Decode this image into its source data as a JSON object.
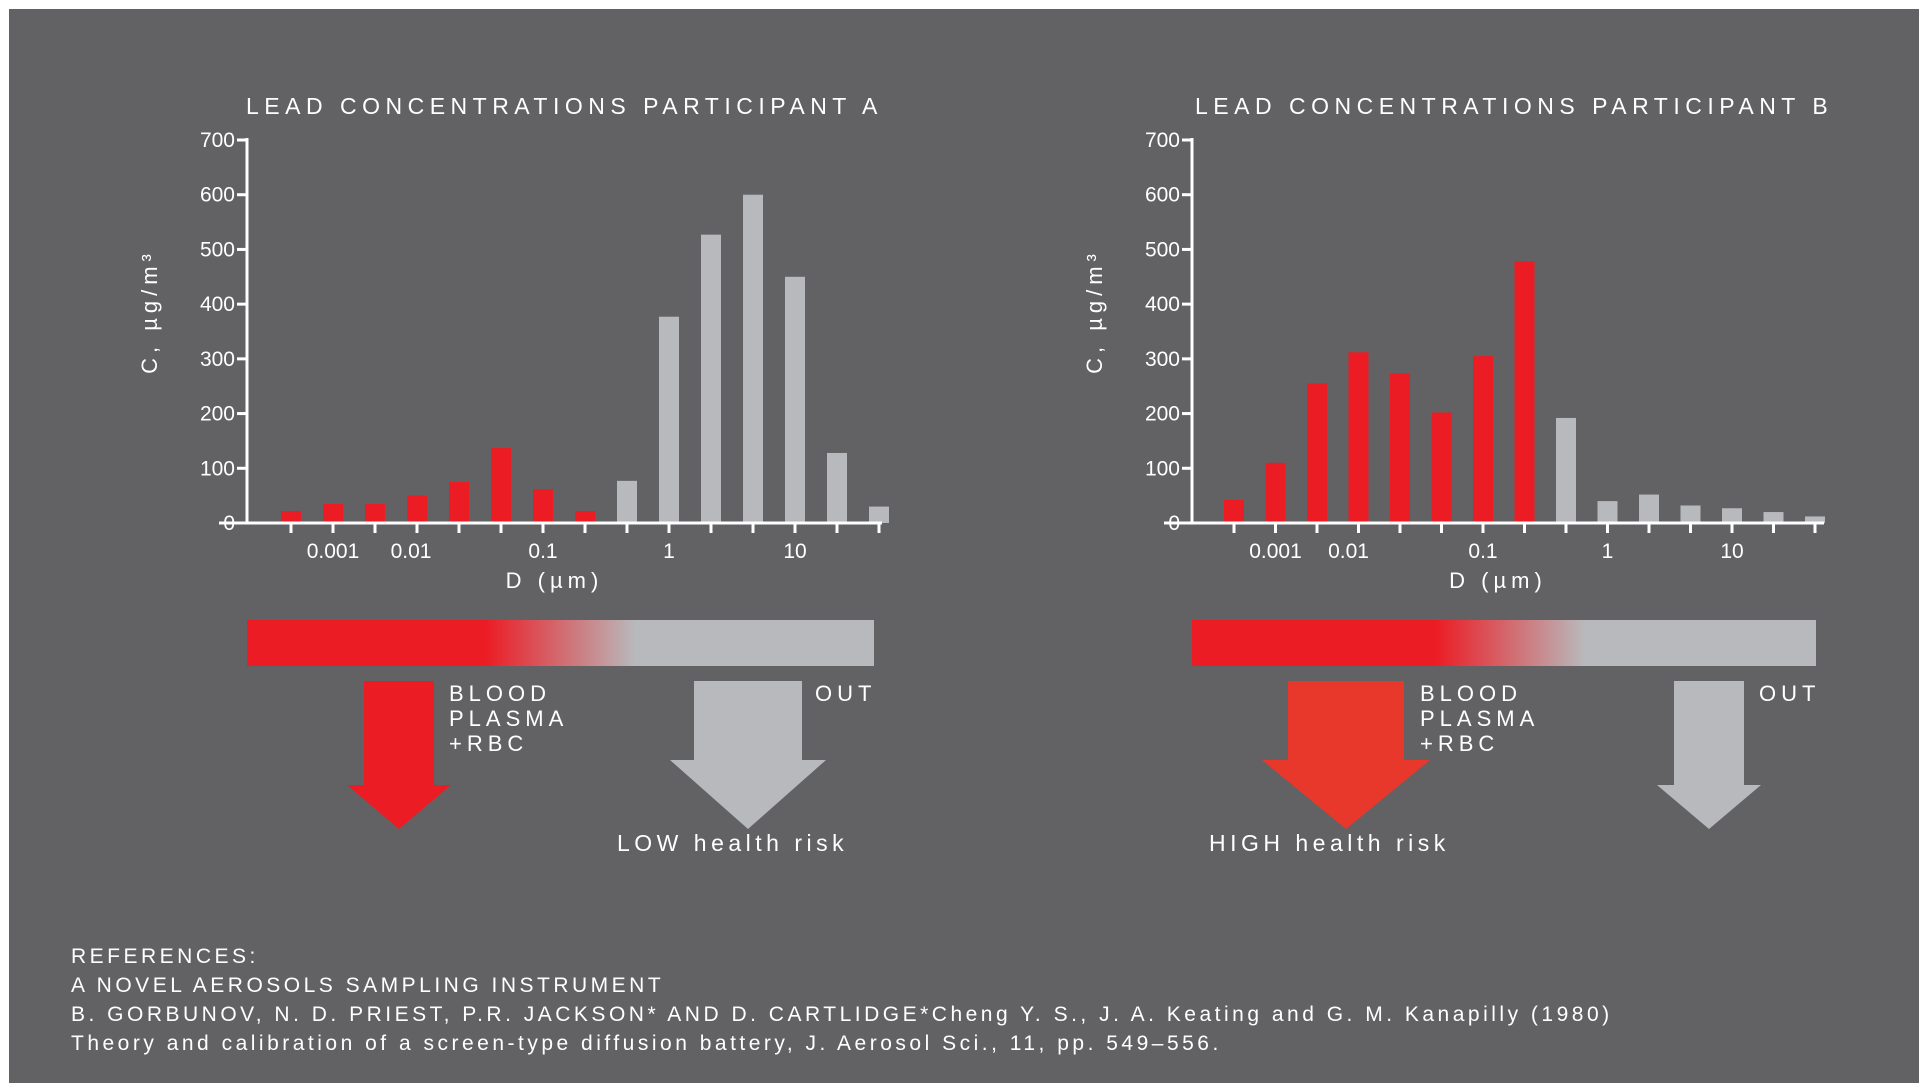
{
  "charts": [
    {
      "id": "a",
      "title": "LEAD CONCENTRATIONS PARTICIPANT A",
      "ylabel": "C, µg/m³",
      "xlabel": "D (µm)",
      "yticks": [
        "0",
        "100",
        "200",
        "300",
        "400",
        "500",
        "600",
        "700"
      ],
      "xticks": [
        "0.001",
        "0.01",
        "0.1",
        "1",
        "10"
      ],
      "deposition_labels": {
        "left": "BLOOD\nPLASMA\n+RBC",
        "right": "OUT"
      },
      "risk_label": "LOW health risk"
    },
    {
      "id": "b",
      "title": "LEAD CONCENTRATIONS PARTICIPANT B",
      "ylabel": "C, µg/m³",
      "xlabel": "D (µm)",
      "yticks": [
        "0",
        "100",
        "200",
        "300",
        "400",
        "500",
        "600",
        "700"
      ],
      "xticks": [
        "0.001",
        "0.01",
        "0.1",
        "1",
        "10"
      ],
      "deposition_labels": {
        "left": "BLOOD\nPLASMA\n+RBC",
        "right": "OUT"
      },
      "risk_label": "HIGH health risk"
    }
  ],
  "chart_data": [
    {
      "type": "bar",
      "title": "LEAD CONCENTRATIONS PARTICIPANT A",
      "xlabel": "D (µm)",
      "ylabel": "C, µg/m³",
      "ylim": [
        0,
        700
      ],
      "x_scale": "log",
      "x_ticks": [
        0.001,
        0.01,
        0.1,
        1,
        10
      ],
      "series": [
        {
          "color": "#ec1c24",
          "x": [
            0.0005,
            0.001,
            0.002,
            0.005,
            0.01,
            0.02,
            0.05,
            0.1,
            0.2,
            0.5
          ],
          "values": [
            22,
            35,
            35,
            50,
            75,
            137,
            62,
            22,
            0,
            0
          ]
        }
      ],
      "bars": [
        {
          "x": 0.0005,
          "value": 22,
          "color": "#ec1c24"
        },
        {
          "x": 0.001,
          "value": 35,
          "color": "#ec1c24"
        },
        {
          "x": 0.002,
          "value": 35,
          "color": "#ec1c24"
        },
        {
          "x": 0.005,
          "value": 50,
          "color": "#ec1c24"
        },
        {
          "x": 0.01,
          "value": 75,
          "color": "#ec1c24"
        },
        {
          "x": 0.02,
          "value": 137,
          "color": "#ec1c24"
        },
        {
          "x": 0.05,
          "value": 62,
          "color": "#ec1c24"
        },
        {
          "x": 0.1,
          "value": 22,
          "color": "#ec1c24"
        },
        {
          "x": 0.2,
          "value": 77,
          "color": "#b8b9bc"
        },
        {
          "x": 0.5,
          "value": 377,
          "color": "#b8b9bc"
        },
        {
          "x": 1,
          "value": 527,
          "color": "#b8b9bc"
        },
        {
          "x": 2,
          "value": 600,
          "color": "#b8b9bc"
        },
        {
          "x": 5,
          "value": 450,
          "color": "#b8b9bc"
        },
        {
          "x": 10,
          "value": 128,
          "color": "#b8b9bc"
        },
        {
          "x": 20,
          "value": 30,
          "color": "#b8b9bc"
        }
      ]
    },
    {
      "type": "bar",
      "title": "LEAD CONCENTRATIONS PARTICIPANT B",
      "xlabel": "D (µm)",
      "ylabel": "C, µg/m³",
      "ylim": [
        0,
        700
      ],
      "x_scale": "log",
      "x_ticks": [
        0.001,
        0.01,
        0.1,
        1,
        10
      ],
      "bars": [
        {
          "x": 0.0005,
          "value": 42,
          "color": "#ec1c24"
        },
        {
          "x": 0.001,
          "value": 110,
          "color": "#ec1c24"
        },
        {
          "x": 0.002,
          "value": 255,
          "color": "#ec1c24"
        },
        {
          "x": 0.005,
          "value": 312,
          "color": "#ec1c24"
        },
        {
          "x": 0.01,
          "value": 273,
          "color": "#ec1c24"
        },
        {
          "x": 0.02,
          "value": 202,
          "color": "#ec1c24"
        },
        {
          "x": 0.05,
          "value": 305,
          "color": "#ec1c24"
        },
        {
          "x": 0.1,
          "value": 478,
          "color": "#ec1c24"
        },
        {
          "x": 0.2,
          "value": 192,
          "color": "#b8b9bc"
        },
        {
          "x": 0.5,
          "value": 40,
          "color": "#b8b9bc"
        },
        {
          "x": 1,
          "value": 52,
          "color": "#b8b9bc"
        },
        {
          "x": 2,
          "value": 32,
          "color": "#b8b9bc"
        },
        {
          "x": 5,
          "value": 27,
          "color": "#b8b9bc"
        },
        {
          "x": 10,
          "value": 20,
          "color": "#b8b9bc"
        },
        {
          "x": 20,
          "value": 12,
          "color": "#b8b9bc"
        }
      ]
    }
  ],
  "references": {
    "heading": "REFERENCES:",
    "lines": [
      "A NOVEL AEROSOLS SAMPLING INSTRUMENT",
      "B. GORBUNOV, N. D. PRIEST, P.R. JACKSON* AND D. CARTLIDGE*Cheng Y. S., J. A. Keating and G. M. Kanapilly (1980)",
      "Theory and calibration of a screen-type diffusion battery, J. Aerosol Sci., 11, pp. 549–556."
    ]
  },
  "colors": {
    "background": "#626265",
    "red": "#ec1c24",
    "red_arrow_b": "#e8382c",
    "grey": "#b8b9bc",
    "text": "#ffffff"
  }
}
